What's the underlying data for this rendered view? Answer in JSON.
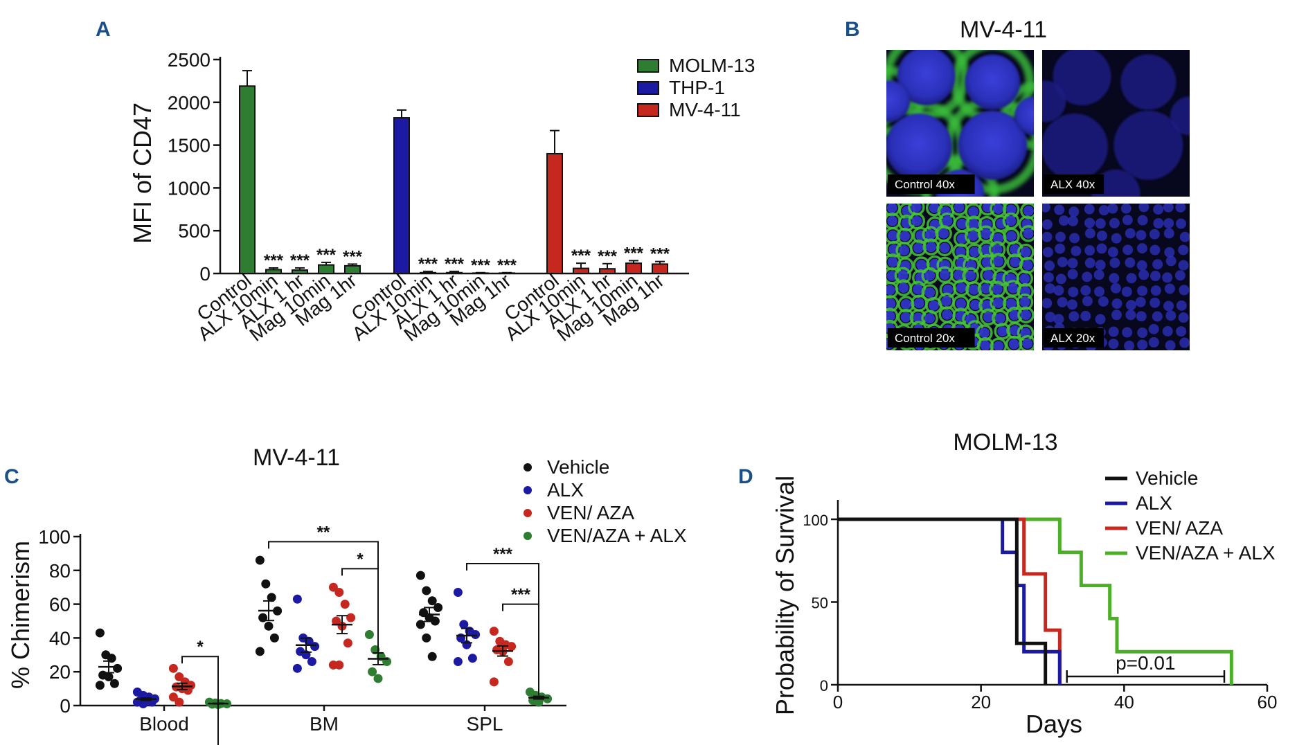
{
  "panels": {
    "A": "A",
    "B": "B",
    "C": "C",
    "D": "D"
  },
  "colors": {
    "green": "#2e7d32",
    "blue": "#1c1aa3",
    "red": "#c62820",
    "black": "#111111",
    "green_km": "#4caf28"
  },
  "chart_data": [
    {
      "id": "A",
      "type": "bar",
      "title": "",
      "xlabel": "",
      "ylabel": "MFI of CD47",
      "ylim": [
        0,
        2500
      ],
      "yticks": [
        "0",
        "500",
        "1000",
        "1500",
        "2000",
        "2500"
      ],
      "categories": [
        "Control",
        "ALX 10min",
        "ALX 1 hr",
        "Mag 10min",
        "Mag 1hr"
      ],
      "legend": [
        "MOLM-13",
        "THP-1",
        "MV-4-11"
      ],
      "series": [
        {
          "name": "MOLM-13",
          "values": [
            2190,
            45,
            40,
            100,
            90
          ],
          "errors": [
            180,
            20,
            25,
            30,
            20
          ],
          "sig": [
            "",
            "***",
            "***",
            "***",
            "***"
          ]
        },
        {
          "name": "THP-1",
          "values": [
            1820,
            10,
            10,
            5,
            5
          ],
          "errors": [
            90,
            15,
            15,
            5,
            5
          ],
          "sig": [
            "",
            "***",
            "***",
            "***",
            "***"
          ]
        },
        {
          "name": "MV-4-11",
          "values": [
            1400,
            60,
            55,
            120,
            110
          ],
          "errors": [
            270,
            60,
            60,
            30,
            30
          ],
          "sig": [
            "",
            "***",
            "***",
            "***",
            "***"
          ]
        }
      ]
    },
    {
      "id": "C",
      "type": "scatter",
      "title": "MV-4-11",
      "ylabel": "% Chimerism",
      "ylim": [
        0,
        100
      ],
      "yticks": [
        "0",
        "20",
        "40",
        "60",
        "80",
        "100"
      ],
      "categories": [
        "Blood",
        "BM",
        "SPL"
      ],
      "legend": [
        "Vehicle",
        "ALX",
        "VEN/ AZA",
        "VEN/AZA + ALX"
      ],
      "series": [
        {
          "name": "Vehicle",
          "points": [
            [
              43,
              30,
              28,
              22,
              18,
              17,
              13,
              12
            ],
            [
              86,
              72,
              64,
              56,
              52,
              47,
              40,
              32
            ],
            [
              77,
              68,
              62,
              58,
              55,
              52,
              50,
              48,
              40,
              29
            ]
          ]
        },
        {
          "name": "ALX",
          "points": [
            [
              8,
              6,
              5,
              4,
              3,
              3,
              2,
              2,
              1
            ],
            [
              63,
              40,
              38,
              35,
              32,
              30,
              26,
              22
            ],
            [
              67,
              48,
              44,
              42,
              40,
              36,
              28,
              26
            ]
          ]
        },
        {
          "name": "VEN/ AZA",
          "points": [
            [
              22,
              17,
              14,
              12,
              11,
              10,
              9,
              5,
              2
            ],
            [
              70,
              67,
              60,
              52,
              50,
              47,
              37,
              24,
              24
            ],
            [
              44,
              38,
              36,
              35,
              33,
              32,
              26,
              14
            ]
          ]
        },
        {
          "name": "VEN/AZA + ALX",
          "points": [
            [
              2,
              1.5,
              1.2,
              1,
              0.8,
              0.6
            ],
            [
              42,
              33,
              29,
              26,
              20,
              16
            ],
            [
              8,
              6,
              5,
              4,
              3,
              2
            ]
          ]
        }
      ],
      "comparisons": [
        {
          "group": "Blood",
          "from": "VEN/ AZA",
          "to": "VEN/AZA + ALX",
          "label": "*"
        },
        {
          "group": "BM",
          "from": "Vehicle",
          "to": "VEN/AZA + ALX",
          "label": "**"
        },
        {
          "group": "BM",
          "from": "VEN/ AZA",
          "to": "VEN/AZA + ALX",
          "label": "*"
        },
        {
          "group": "SPL",
          "from": "ALX",
          "to": "VEN/AZA + ALX",
          "label": "***"
        },
        {
          "group": "SPL",
          "from": "VEN/ AZA",
          "to": "VEN/AZA + ALX",
          "label": "***"
        }
      ]
    },
    {
      "id": "D",
      "type": "line",
      "title": "MOLM-13",
      "xlabel": "Days",
      "ylabel": "Probability of Survival",
      "xlim": [
        0,
        60
      ],
      "ylim": [
        0,
        100
      ],
      "xticks": [
        "0",
        "20",
        "40",
        "60"
      ],
      "yticks": [
        "0",
        "50",
        "100"
      ],
      "legend": [
        "Vehicle",
        "ALX",
        "VEN/ AZA",
        "VEN/AZA + ALX"
      ],
      "annotation": {
        "label": "p=0.01",
        "x_from": 32,
        "x_to": 54
      },
      "series": [
        {
          "name": "Vehicle",
          "steps": [
            [
              0,
              100
            ],
            [
              25,
              25
            ],
            [
              29,
              0
            ]
          ]
        },
        {
          "name": "ALX",
          "steps": [
            [
              0,
              100
            ],
            [
              23,
              80
            ],
            [
              25,
              60
            ],
            [
              26,
              20
            ],
            [
              31,
              0
            ]
          ]
        },
        {
          "name": "VEN/ AZA",
          "steps": [
            [
              0,
              100
            ],
            [
              26,
              67
            ],
            [
              29,
              33
            ],
            [
              31,
              0
            ]
          ]
        },
        {
          "name": "VEN/AZA + ALX",
          "steps": [
            [
              0,
              100
            ],
            [
              31,
              80
            ],
            [
              34,
              60
            ],
            [
              38,
              40
            ],
            [
              39,
              20
            ],
            [
              55,
              0
            ]
          ]
        }
      ]
    }
  ],
  "microscopy": {
    "title": "MV-4-11",
    "panels": [
      {
        "label": "Control 40x",
        "stain": "green"
      },
      {
        "label": "ALX 40x",
        "stain": "none"
      },
      {
        "label": "Control 20x",
        "stain": "green"
      },
      {
        "label": "ALX 20x",
        "stain": "none"
      }
    ]
  }
}
